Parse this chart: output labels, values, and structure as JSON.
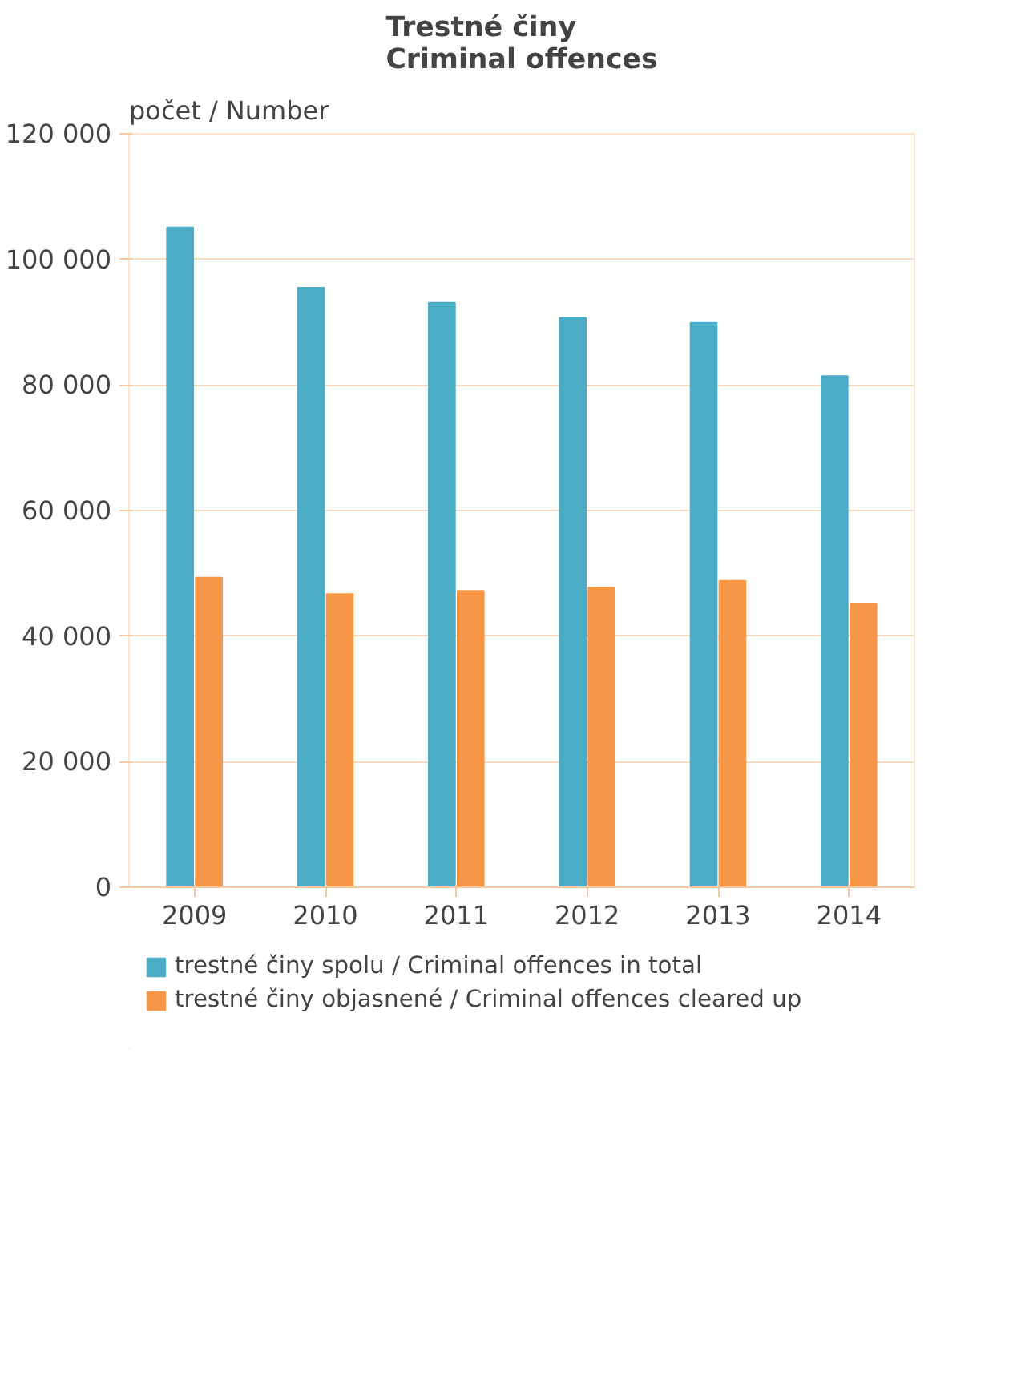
{
  "chart_data": {
    "type": "bar",
    "title": "Trestné činy\nCriminal offences",
    "ylabel": "počet / Number",
    "categories": [
      "2009",
      "2010",
      "2011",
      "2012",
      "2013",
      "2014"
    ],
    "series": [
      {
        "name": "trestné činy spolu / Criminal offences in total",
        "color": "#4bacc6",
        "values": [
          105100,
          95500,
          93100,
          90700,
          89900,
          81400
        ]
      },
      {
        "name": "trestné činy objasnené / Criminal offences cleared up",
        "color": "#f79646",
        "values": [
          49300,
          46700,
          47200,
          47700,
          48800,
          45200
        ]
      }
    ],
    "ylim": [
      0,
      120000
    ],
    "yticks": [
      0,
      {
        "value": 20000,
        "label": "20 000"
      },
      {
        "value": 40000,
        "label": "40 000"
      },
      {
        "value": 60000,
        "label": "60 000"
      },
      {
        "value": 80000,
        "label": "80 000"
      },
      {
        "value": 100000,
        "label": "100 000"
      },
      {
        "value": 120000,
        "label": "120 000"
      }
    ],
    "grid": "y",
    "legend": "bottom"
  }
}
